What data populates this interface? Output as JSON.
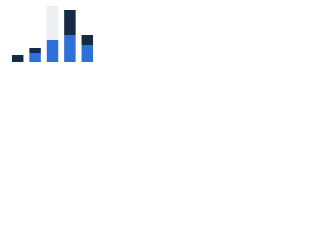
{
  "chart_data": {
    "type": "stacked-bar",
    "categories": [
      null,
      null,
      null,
      null,
      null
    ],
    "series": [
      {
        "color": "#2f6fdc",
        "values": [
          0,
          9,
          22,
          27,
          17
        ]
      },
      {
        "color": "#172b47",
        "values": [
          7,
          5,
          0,
          25,
          10
        ]
      },
      {
        "color": "#eceef1",
        "values": [
          0,
          0,
          34,
          0,
          0
        ]
      }
    ],
    "ylim": [
      0,
      56
    ]
  }
}
